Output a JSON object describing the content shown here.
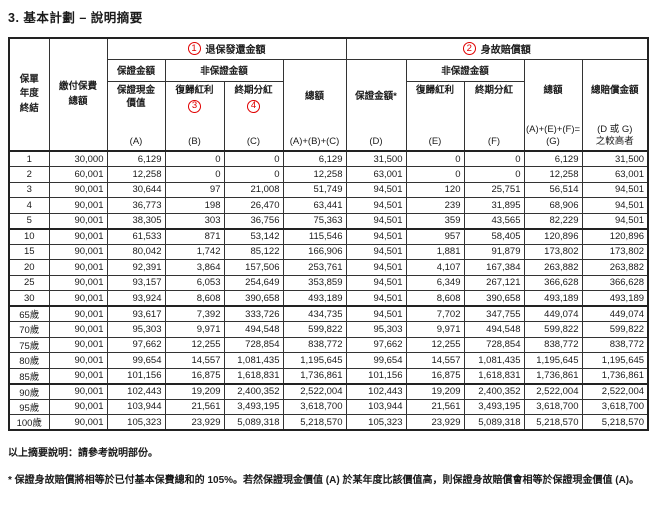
{
  "title": "3. 基本計劃 – 說明摘要",
  "accent_red": "#e00000",
  "table": {
    "header": {
      "policy_year": "保單\n年度\n終結",
      "premium_total": "繳付保費\n總額",
      "surrender_group": {
        "num": "1",
        "label": "退保發還金額"
      },
      "death_group": {
        "num": "2",
        "label": "身故賠償額"
      },
      "guaranteed_amount": "保證金額",
      "non_guaranteed_amount": "非保證金額",
      "guaranteed_cash_value": {
        "label": "保證現金\n價值",
        "code": "(A)"
      },
      "reversionary_bonus_surrender": {
        "label": "復歸紅利",
        "num": "3",
        "code": "(B)"
      },
      "terminal_dividend_surrender": {
        "label": "終期分紅",
        "num": "4",
        "code": "(C)"
      },
      "total_surrender": {
        "label": "總額",
        "code": "(A)+(B)+(C)"
      },
      "guaranteed_death": {
        "label": "保證金額*",
        "code": "(D)"
      },
      "reversionary_bonus_death": {
        "label": "復歸紅利",
        "code": "(E)"
      },
      "terminal_dividend_death": {
        "label": "終期分紅",
        "code": "(F)"
      },
      "total_death": {
        "label": "總額",
        "code": "(A)+(E)+(F)=\n(G)"
      },
      "total_benefit": {
        "label": "總賠償金額",
        "code": "(D 或 G)\n之較高者"
      }
    },
    "rows": [
      {
        "label": "1",
        "values": [
          "30,000",
          "6,129",
          "0",
          "0",
          "6,129",
          "31,500",
          "0",
          "0",
          "6,129",
          "31,500"
        ]
      },
      {
        "label": "2",
        "values": [
          "60,001",
          "12,258",
          "0",
          "0",
          "12,258",
          "63,001",
          "0",
          "0",
          "12,258",
          "63,001"
        ]
      },
      {
        "label": "3",
        "values": [
          "90,001",
          "30,644",
          "97",
          "21,008",
          "51,749",
          "94,501",
          "120",
          "25,751",
          "56,514",
          "94,501"
        ]
      },
      {
        "label": "4",
        "values": [
          "90,001",
          "36,773",
          "198",
          "26,470",
          "63,441",
          "94,501",
          "239",
          "31,895",
          "68,906",
          "94,501"
        ]
      },
      {
        "label": "5",
        "values": [
          "90,001",
          "38,305",
          "303",
          "36,756",
          "75,363",
          "94,501",
          "359",
          "43,565",
          "82,229",
          "94,501"
        ],
        "group_end": true
      },
      {
        "label": "10",
        "values": [
          "90,001",
          "61,533",
          "871",
          "53,142",
          "115,546",
          "94,501",
          "957",
          "58,405",
          "120,896",
          "120,896"
        ]
      },
      {
        "label": "15",
        "values": [
          "90,001",
          "80,042",
          "1,742",
          "85,122",
          "166,906",
          "94,501",
          "1,881",
          "91,879",
          "173,802",
          "173,802"
        ]
      },
      {
        "label": "20",
        "values": [
          "90,001",
          "92,391",
          "3,864",
          "157,506",
          "253,761",
          "94,501",
          "4,107",
          "167,384",
          "263,882",
          "263,882"
        ]
      },
      {
        "label": "25",
        "values": [
          "90,001",
          "93,157",
          "6,053",
          "254,649",
          "353,859",
          "94,501",
          "6,349",
          "267,121",
          "366,628",
          "366,628"
        ]
      },
      {
        "label": "30",
        "values": [
          "90,001",
          "93,924",
          "8,608",
          "390,658",
          "493,189",
          "94,501",
          "8,608",
          "390,658",
          "493,189",
          "493,189"
        ],
        "group_end": true
      },
      {
        "label": "65歲",
        "values": [
          "90,001",
          "93,617",
          "7,392",
          "333,726",
          "434,735",
          "94,501",
          "7,702",
          "347,755",
          "449,074",
          "449,074"
        ]
      },
      {
        "label": "70歲",
        "values": [
          "90,001",
          "95,303",
          "9,971",
          "494,548",
          "599,822",
          "95,303",
          "9,971",
          "494,548",
          "599,822",
          "599,822"
        ]
      },
      {
        "label": "75歲",
        "values": [
          "90,001",
          "97,662",
          "12,255",
          "728,854",
          "838,772",
          "97,662",
          "12,255",
          "728,854",
          "838,772",
          "838,772"
        ]
      },
      {
        "label": "80歲",
        "values": [
          "90,001",
          "99,654",
          "14,557",
          "1,081,435",
          "1,195,645",
          "99,654",
          "14,557",
          "1,081,435",
          "1,195,645",
          "1,195,645"
        ]
      },
      {
        "label": "85歲",
        "values": [
          "90,001",
          "101,156",
          "16,875",
          "1,618,831",
          "1,736,861",
          "101,156",
          "16,875",
          "1,618,831",
          "1,736,861",
          "1,736,861"
        ],
        "group_end": true
      },
      {
        "label": "90歲",
        "values": [
          "90,001",
          "102,443",
          "19,209",
          "2,400,352",
          "2,522,004",
          "102,443",
          "19,209",
          "2,400,352",
          "2,522,004",
          "2,522,004"
        ]
      },
      {
        "label": "95歲",
        "values": [
          "90,001",
          "103,944",
          "21,561",
          "3,493,195",
          "3,618,700",
          "103,944",
          "21,561",
          "3,493,195",
          "3,618,700",
          "3,618,700"
        ]
      },
      {
        "label": "100歲",
        "values": [
          "90,001",
          "105,323",
          "23,929",
          "5,089,318",
          "5,218,570",
          "105,323",
          "23,929",
          "5,089,318",
          "5,218,570",
          "5,218,570"
        ]
      }
    ]
  },
  "notes": {
    "summary": "以上摘要說明：請參考說明部份。",
    "footnote": "* 保證身故賠償將相等於已付基本保費總和的 105%。若然保證現金價值 (A) 於某年度比該價值高，則保證身故賠償會相等於保證現金價值 (A)。"
  }
}
